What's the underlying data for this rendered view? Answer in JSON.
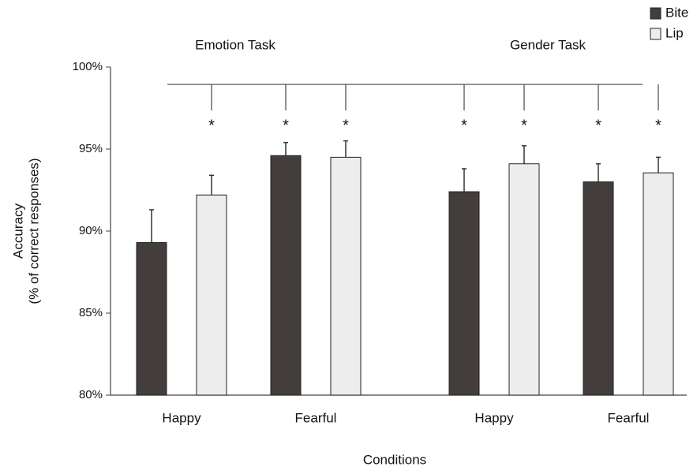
{
  "chart_data": {
    "type": "bar",
    "y_label": [
      "Accuracy",
      "(% of correct responses)"
    ],
    "x_label": "Conditions",
    "groups": [
      "Emotion Task",
      "Gender Task"
    ],
    "categories": [
      "Happy",
      "Fearful",
      "Happy",
      "Fearful"
    ],
    "series": [
      {
        "name": "Bite",
        "color": "#433d3c",
        "values": [
          89.3,
          94.6,
          92.4,
          93.0
        ],
        "errors": [
          2.0,
          0.8,
          1.4,
          1.1
        ],
        "significance": [
          null,
          "*",
          "*",
          "*"
        ]
      },
      {
        "name": "Lip",
        "color": "#ededed",
        "values": [
          92.2,
          94.5,
          94.1,
          93.55
        ],
        "errors": [
          1.2,
          1.0,
          1.1,
          0.95
        ],
        "significance": [
          "*",
          "*",
          "*",
          "*"
        ]
      }
    ],
    "ylim": [
      80,
      100
    ],
    "yticks": [
      {
        "value": 80,
        "label": "80%"
      },
      {
        "value": 85,
        "label": "85%"
      },
      {
        "value": 90,
        "label": "90%"
      },
      {
        "value": 95,
        "label": "95%"
      },
      {
        "value": 100,
        "label": "100%"
      }
    ],
    "legend": "top-right"
  }
}
